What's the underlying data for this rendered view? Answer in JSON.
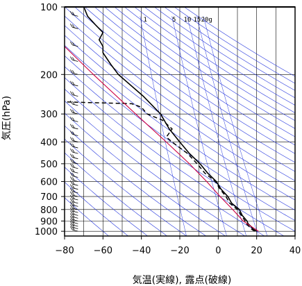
{
  "chart_data": {
    "type": "line",
    "xlabel": "気温(実線), 露点(破線)",
    "ylabel": "気圧(hPa)",
    "xlim": [
      -80,
      40
    ],
    "ylim": [
      1050,
      100
    ],
    "y_scale": "log",
    "x_ticks": [
      "−80",
      "−60",
      "−40",
      "−20",
      "0",
      "20",
      "40"
    ],
    "x_tick_values": [
      -80,
      -60,
      -40,
      -20,
      0,
      20,
      40
    ],
    "y_ticks": [
      "100",
      "200",
      "300",
      "400",
      "500",
      "600",
      "700",
      "800",
      "900",
      "1000"
    ],
    "y_tick_values": [
      100,
      200,
      300,
      400,
      500,
      600,
      700,
      800,
      900,
      1000
    ],
    "mixing_ratio_labels": [
      "1",
      "5",
      "10",
      "15",
      "20g"
    ],
    "mixing_ratio_positions": [
      {
        "t": -38,
        "p": 103
      },
      {
        "t": -23,
        "p": 103
      },
      {
        "t": -16,
        "p": 103
      },
      {
        "t": -11,
        "p": 103
      },
      {
        "t": -6,
        "p": 103
      }
    ],
    "colors": {
      "temperature": "#000000",
      "dewpoint": "#000000",
      "parcel": "#cc0044",
      "grid": "#0000cc"
    },
    "series": [
      {
        "role": "temperature",
        "p": [
          1000,
          975,
          950,
          925,
          900,
          850,
          800,
          750,
          700,
          650,
          600,
          550,
          500,
          450,
          400,
          350,
          300,
          250,
          200,
          180,
          160,
          150,
          140,
          130,
          120,
          110,
          100
        ],
        "t": [
          20,
          18,
          17,
          15.5,
          15,
          12.5,
          11,
          7,
          5,
          1.5,
          -1,
          -5.5,
          -9.5,
          -15,
          -20,
          -25.5,
          -30,
          -39,
          -52,
          -56,
          -60,
          -60,
          -62,
          -60,
          -64,
          -68,
          -70
        ]
      },
      {
        "role": "dewpoint",
        "p": [
          1000,
          975,
          950,
          925,
          900,
          850,
          800,
          750,
          700,
          650,
          600,
          550,
          500,
          450,
          400,
          380,
          350,
          320,
          300,
          280,
          270,
          265
        ],
        "t": [
          19,
          17,
          16,
          14.5,
          14,
          12,
          10,
          6,
          4,
          1,
          -1.5,
          -7,
          -11,
          -16,
          -24,
          -27,
          -24,
          -29,
          -37,
          -40,
          -45,
          -80
        ]
      },
      {
        "role": "parcel",
        "p": [
          1000,
          900,
          800,
          700,
          600,
          500,
          400,
          300,
          200,
          150
        ],
        "t": [
          21,
          13,
          7.5,
          1,
          -6,
          -15,
          -27,
          -43,
          -65,
          -80
        ]
      }
    ],
    "wind_barbs": {
      "x": -73,
      "p": [
        1000,
        975,
        950,
        925,
        900,
        875,
        850,
        825,
        800,
        775,
        750,
        725,
        700,
        675,
        650,
        625,
        600,
        575,
        550,
        525,
        500,
        475,
        450,
        425,
        400,
        375,
        350,
        325,
        300,
        275,
        250,
        225,
        200,
        175,
        150,
        125,
        110
      ]
    }
  }
}
